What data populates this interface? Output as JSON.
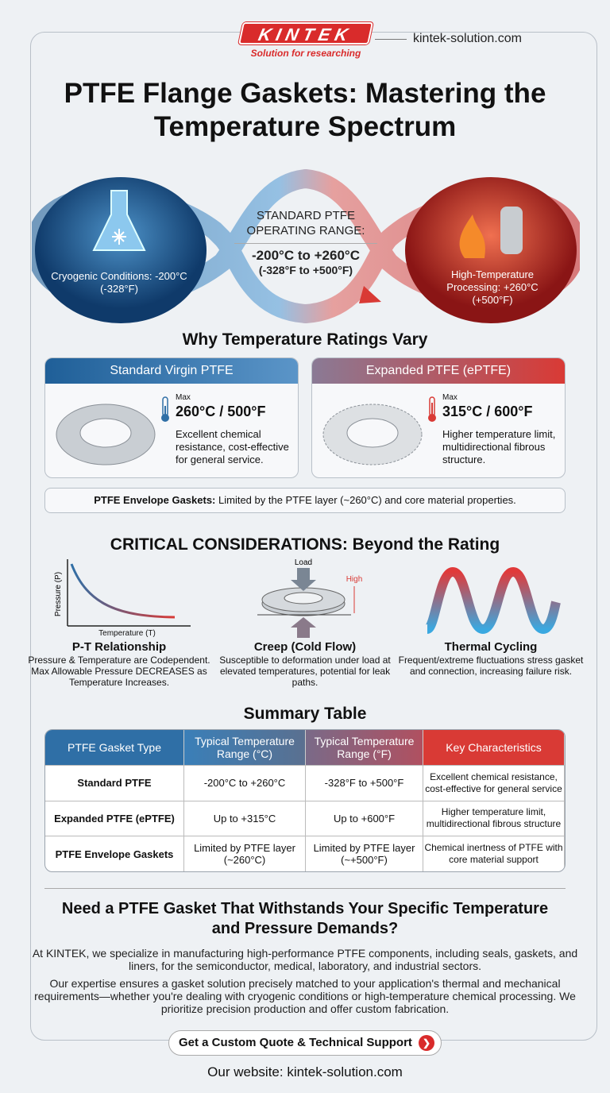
{
  "brand": {
    "logo": "KINTEK",
    "tagline": "Solution for researching",
    "site": "kintek-solution.com"
  },
  "title": "PTFE Flange Gaskets: Mastering the Temperature Spectrum",
  "hero": {
    "cold": "Cryogenic Conditions: -200°C (-328°F)",
    "range_label": "STANDARD PTFE OPERATING RANGE:",
    "range_c": "-200°C to +260°C",
    "range_f": "(-328°F to +500°F)",
    "hot": "High-Temperature Processing: +260°C (+500°F)"
  },
  "why": {
    "heading": "Why Temperature Ratings Vary",
    "cards": [
      {
        "title": "Standard Virgin PTFE",
        "max": "Max",
        "value": "260°C / 500°F",
        "desc": "Excellent chemical resistance, cost-effective for general service."
      },
      {
        "title": "Expanded PTFE (ePTFE)",
        "max": "Max",
        "value": "315°C / 600°F",
        "desc": "Higher temperature limit, multidirectional fibrous structure."
      }
    ],
    "envelope_bold": "PTFE Envelope Gaskets:",
    "envelope_text": " Limited by the PTFE layer (~260°C) and core material properties."
  },
  "critical": {
    "heading": "CRITICAL CONSIDERATIONS: Beyond the Rating",
    "y_axis": "Pressure (P)",
    "x_axis": "Temperature (T)",
    "load": "Load",
    "high": "High",
    "items": [
      {
        "title": "P-T Relationship",
        "desc": "Pressure & Temperature are Codependent. Max Allowable Pressure DECREASES as Temperature Increases."
      },
      {
        "title": "Creep (Cold Flow)",
        "desc": "Susceptible to deformation under load at elevated temperatures, potential for leak paths."
      },
      {
        "title": "Thermal Cycling",
        "desc": "Frequent/extreme fluctuations stress gasket and connection, increasing failure risk."
      }
    ]
  },
  "table": {
    "heading": "Summary Table",
    "headers": [
      "PTFE Gasket Type",
      "Typical Temperature Range (°C)",
      "Typical Temperature Range (°F)",
      "Key Characteristics"
    ],
    "rows": [
      [
        "Standard PTFE",
        "-200°C to +260°C",
        "-328°F to +500°F",
        "Excellent chemical resistance, cost-effective for general service"
      ],
      [
        "Expanded PTFE (ePTFE)",
        "Up to +315°C",
        "Up to +600°F",
        "Higher temperature limit, multidirectional fibrous structure"
      ],
      [
        "PTFE Envelope Gaskets",
        "Limited by PTFE layer (~260°C)",
        "Limited by PTFE layer (~+500°F)",
        "Chemical inertness of PTFE with core material support"
      ]
    ]
  },
  "cta": {
    "heading": "Need a PTFE Gasket That Withstands Your Specific Temperature and Pressure Demands?",
    "p1": "At KINTEK, we specialize in manufacturing high-performance PTFE components, including seals, gaskets, and liners, for the semiconductor, medical, laboratory, and industrial sectors.",
    "p2": "Our expertise ensures a gasket solution precisely matched to your application's thermal and mechanical requirements—whether you're dealing with cryogenic conditions or high-temperature chemical processing. We prioritize precision production and offer custom fabrication.",
    "button": "Get a Custom Quote & Technical Support",
    "website": "Our website: kintek-solution.com"
  },
  "colors": {
    "blue": "#2f6fa6",
    "red": "#d93a35",
    "dark": "#111111"
  }
}
